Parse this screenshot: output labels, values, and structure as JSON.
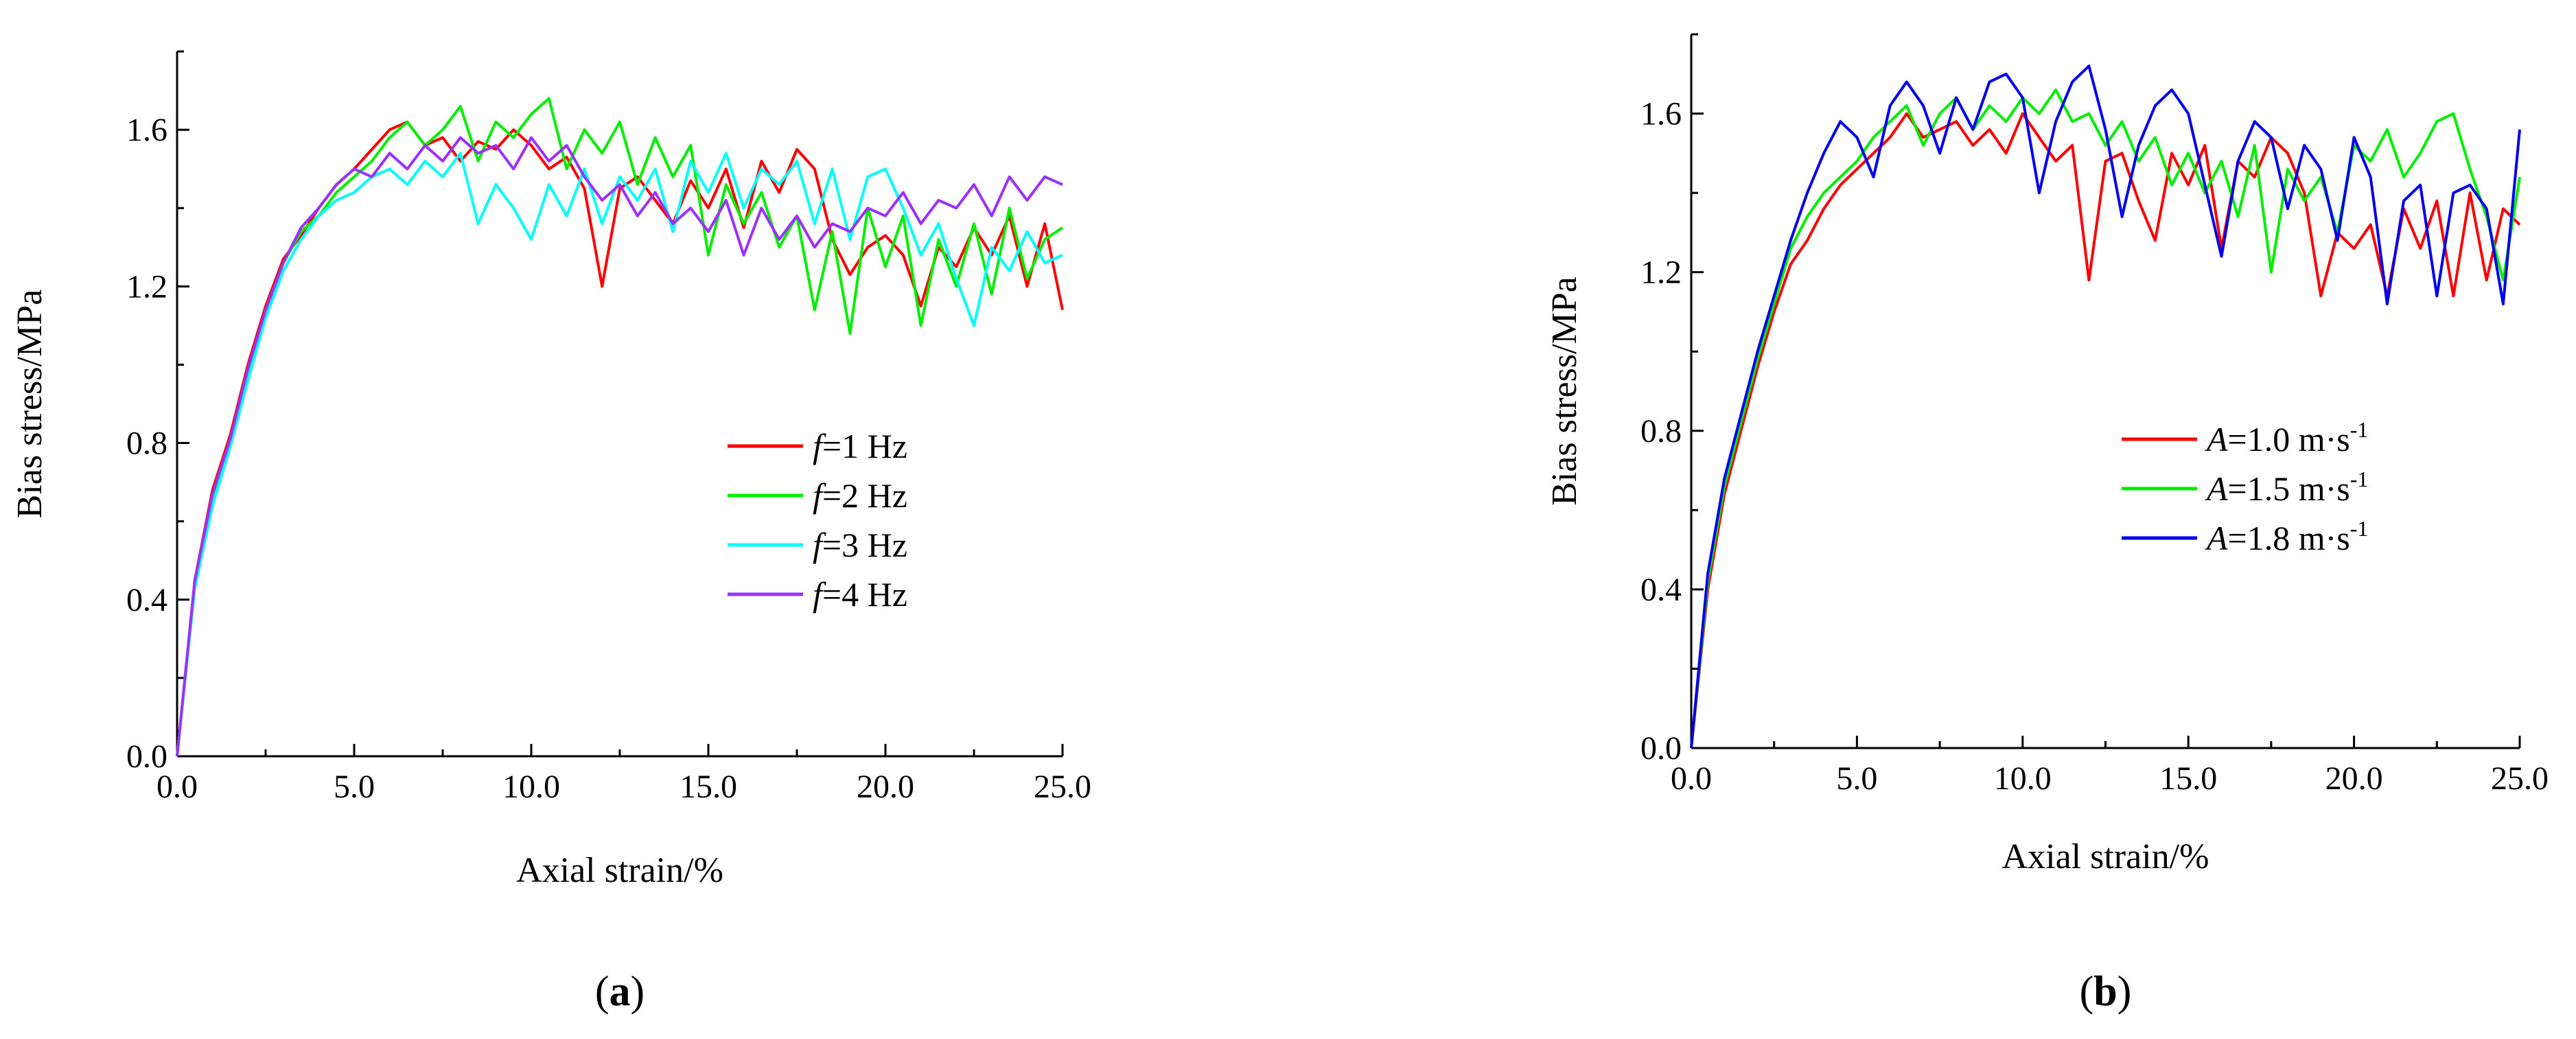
{
  "chart_data": [
    {
      "type": "line",
      "panel_label": "a",
      "xlabel": "Axial strain/%",
      "ylabel": "Bias stress/MPa",
      "xlim": [
        0,
        25
      ],
      "ylim": [
        0,
        1.8
      ],
      "xticks": [
        "0.0",
        "5.0",
        "10.0",
        "15.0",
        "20.0",
        "25.0"
      ],
      "yticks": [
        "0.0",
        "0.4",
        "0.8",
        "1.2",
        "1.6"
      ],
      "legend_position": "lower-right",
      "series": [
        {
          "name": "f=1 Hz",
          "legend_italic": "f",
          "legend_rest": "=1 Hz",
          "color": "#ff0000",
          "x": [
            0,
            0.5,
            1.0,
            1.5,
            2.0,
            2.5,
            3.0,
            3.5,
            4.0,
            4.5,
            5.0,
            5.5,
            6.0,
            6.5,
            7.0,
            7.5,
            8.0,
            8.5,
            9.0,
            9.5,
            10.0,
            10.5,
            11.0,
            11.5,
            12.0,
            12.5,
            13.0,
            13.5,
            14.0,
            14.5,
            15.0,
            15.5,
            16.0,
            16.5,
            17.0,
            17.5,
            18.0,
            18.5,
            19.0,
            19.5,
            20.0,
            20.5,
            21.0,
            21.5,
            22.0,
            22.5,
            23.0,
            23.5,
            24.0,
            24.5,
            25.0
          ],
          "y": [
            0,
            0.45,
            0.68,
            0.82,
            1.0,
            1.15,
            1.27,
            1.33,
            1.4,
            1.46,
            1.5,
            1.55,
            1.6,
            1.62,
            1.56,
            1.58,
            1.52,
            1.57,
            1.55,
            1.6,
            1.56,
            1.5,
            1.53,
            1.45,
            1.2,
            1.45,
            1.48,
            1.42,
            1.36,
            1.47,
            1.4,
            1.5,
            1.35,
            1.52,
            1.44,
            1.55,
            1.5,
            1.32,
            1.23,
            1.3,
            1.33,
            1.28,
            1.15,
            1.3,
            1.25,
            1.35,
            1.28,
            1.38,
            1.2,
            1.36,
            1.14
          ]
        },
        {
          "name": "f=2 Hz",
          "legend_italic": "f",
          "legend_rest": "=2 Hz",
          "color": "#00ee00",
          "x": [
            0,
            0.5,
            1.0,
            1.5,
            2.0,
            2.5,
            3.0,
            3.5,
            4.0,
            4.5,
            5.0,
            5.5,
            6.0,
            6.5,
            7.0,
            7.5,
            8.0,
            8.5,
            9.0,
            9.5,
            10.0,
            10.5,
            11.0,
            11.5,
            12.0,
            12.5,
            13.0,
            13.5,
            14.0,
            14.5,
            15.0,
            15.5,
            16.0,
            16.5,
            17.0,
            17.5,
            18.0,
            18.5,
            19.0,
            19.5,
            20.0,
            20.5,
            21.0,
            21.5,
            22.0,
            22.5,
            23.0,
            23.5,
            24.0,
            24.5,
            25.0
          ],
          "y": [
            0,
            0.44,
            0.66,
            0.8,
            0.98,
            1.14,
            1.26,
            1.34,
            1.38,
            1.44,
            1.48,
            1.52,
            1.58,
            1.62,
            1.56,
            1.6,
            1.66,
            1.52,
            1.62,
            1.58,
            1.64,
            1.68,
            1.5,
            1.6,
            1.54,
            1.62,
            1.46,
            1.58,
            1.48,
            1.56,
            1.28,
            1.46,
            1.36,
            1.44,
            1.3,
            1.38,
            1.14,
            1.34,
            1.08,
            1.4,
            1.25,
            1.38,
            1.1,
            1.32,
            1.2,
            1.36,
            1.18,
            1.4,
            1.22,
            1.32,
            1.35
          ]
        },
        {
          "name": "f=3 Hz",
          "legend_italic": "f",
          "legend_rest": "=3 Hz",
          "color": "#00ffff",
          "x": [
            0,
            0.5,
            1.0,
            1.5,
            2.0,
            2.5,
            3.0,
            3.5,
            4.0,
            4.5,
            5.0,
            5.5,
            6.0,
            6.5,
            7.0,
            7.5,
            8.0,
            8.5,
            9.0,
            9.5,
            10.0,
            10.5,
            11.0,
            11.5,
            12.0,
            12.5,
            13.0,
            13.5,
            14.0,
            14.5,
            15.0,
            15.5,
            16.0,
            16.5,
            17.0,
            17.5,
            18.0,
            18.5,
            19.0,
            19.5,
            20.0,
            20.5,
            21.0,
            21.5,
            22.0,
            22.5,
            23.0,
            23.5,
            24.0,
            24.5,
            25.0
          ],
          "y": [
            0,
            0.43,
            0.64,
            0.79,
            0.96,
            1.12,
            1.24,
            1.32,
            1.38,
            1.42,
            1.44,
            1.48,
            1.5,
            1.46,
            1.52,
            1.48,
            1.54,
            1.36,
            1.46,
            1.4,
            1.32,
            1.46,
            1.38,
            1.5,
            1.36,
            1.48,
            1.42,
            1.5,
            1.34,
            1.52,
            1.44,
            1.54,
            1.4,
            1.5,
            1.46,
            1.52,
            1.36,
            1.5,
            1.32,
            1.48,
            1.5,
            1.4,
            1.28,
            1.36,
            1.22,
            1.1,
            1.3,
            1.24,
            1.34,
            1.26,
            1.28
          ]
        },
        {
          "name": "f=4 Hz",
          "legend_italic": "f",
          "legend_rest": "=4 Hz",
          "color": "#9b30ff",
          "x": [
            0,
            0.5,
            1.0,
            1.5,
            2.0,
            2.5,
            3.0,
            3.5,
            4.0,
            4.5,
            5.0,
            5.5,
            6.0,
            6.5,
            7.0,
            7.5,
            8.0,
            8.5,
            9.0,
            9.5,
            10.0,
            10.5,
            11.0,
            11.5,
            12.0,
            12.5,
            13.0,
            13.5,
            14.0,
            14.5,
            15.0,
            15.5,
            16.0,
            16.5,
            17.0,
            17.5,
            18.0,
            18.5,
            19.0,
            19.5,
            20.0,
            20.5,
            21.0,
            21.5,
            22.0,
            22.5,
            23.0,
            23.5,
            24.0,
            24.5,
            25.0
          ],
          "y": [
            0,
            0.45,
            0.67,
            0.81,
            0.99,
            1.14,
            1.26,
            1.35,
            1.4,
            1.46,
            1.5,
            1.48,
            1.54,
            1.5,
            1.56,
            1.52,
            1.58,
            1.54,
            1.56,
            1.5,
            1.58,
            1.52,
            1.56,
            1.48,
            1.42,
            1.46,
            1.38,
            1.44,
            1.36,
            1.4,
            1.34,
            1.42,
            1.28,
            1.4,
            1.32,
            1.38,
            1.3,
            1.36,
            1.34,
            1.4,
            1.38,
            1.44,
            1.36,
            1.42,
            1.4,
            1.46,
            1.38,
            1.48,
            1.42,
            1.48,
            1.46
          ]
        }
      ]
    },
    {
      "type": "line",
      "panel_label": "b",
      "xlabel": "Axial strain/%",
      "ylabel": "Bias stress/MPa",
      "xlim": [
        0,
        25
      ],
      "ylim": [
        0,
        1.8
      ],
      "xticks": [
        "0.0",
        "5.0",
        "10.0",
        "15.0",
        "20.0",
        "25.0"
      ],
      "yticks": [
        "0.0",
        "0.4",
        "0.8",
        "1.2",
        "1.6"
      ],
      "legend_position": "center-right",
      "series": [
        {
          "name": "A=1.0 m·s-1",
          "legend_italic": "A",
          "legend_rest": "=1.0 m·s",
          "legend_sup": "-1",
          "color": "#ff0000",
          "x": [
            0,
            0.5,
            1.0,
            1.5,
            2.0,
            2.5,
            3.0,
            3.5,
            4.0,
            4.5,
            5.0,
            5.5,
            6.0,
            6.5,
            7.0,
            7.5,
            8.0,
            8.5,
            9.0,
            9.5,
            10.0,
            10.5,
            11.0,
            11.5,
            12.0,
            12.5,
            13.0,
            13.5,
            14.0,
            14.5,
            15.0,
            15.5,
            16.0,
            16.5,
            17.0,
            17.5,
            18.0,
            18.5,
            19.0,
            19.5,
            20.0,
            20.5,
            21.0,
            21.5,
            22.0,
            22.5,
            23.0,
            23.5,
            24.0,
            24.5,
            25.0
          ],
          "y": [
            0,
            0.4,
            0.64,
            0.8,
            0.96,
            1.1,
            1.22,
            1.28,
            1.36,
            1.42,
            1.46,
            1.5,
            1.54,
            1.6,
            1.54,
            1.56,
            1.58,
            1.52,
            1.56,
            1.5,
            1.6,
            1.54,
            1.48,
            1.52,
            1.18,
            1.48,
            1.5,
            1.38,
            1.28,
            1.5,
            1.42,
            1.52,
            1.26,
            1.48,
            1.44,
            1.54,
            1.5,
            1.4,
            1.14,
            1.3,
            1.26,
            1.32,
            1.14,
            1.36,
            1.26,
            1.38,
            1.14,
            1.4,
            1.18,
            1.36,
            1.32
          ]
        },
        {
          "name": "A=1.5 m·s-1",
          "legend_italic": "A",
          "legend_rest": "=1.5 m·s",
          "legend_sup": "-1",
          "color": "#00ee00",
          "x": [
            0,
            0.5,
            1.0,
            1.5,
            2.0,
            2.5,
            3.0,
            3.5,
            4.0,
            4.5,
            5.0,
            5.5,
            6.0,
            6.5,
            7.0,
            7.5,
            8.0,
            8.5,
            9.0,
            9.5,
            10.0,
            10.5,
            11.0,
            11.5,
            12.0,
            12.5,
            13.0,
            13.5,
            14.0,
            14.5,
            15.0,
            15.5,
            16.0,
            16.5,
            17.0,
            17.5,
            18.0,
            18.5,
            19.0,
            19.5,
            20.0,
            20.5,
            21.0,
            21.5,
            22.0,
            22.5,
            23.0,
            23.5,
            24.0,
            24.5,
            25.0
          ],
          "y": [
            0,
            0.42,
            0.66,
            0.82,
            0.98,
            1.12,
            1.26,
            1.34,
            1.4,
            1.44,
            1.48,
            1.54,
            1.58,
            1.62,
            1.52,
            1.6,
            1.64,
            1.56,
            1.62,
            1.58,
            1.64,
            1.6,
            1.66,
            1.58,
            1.6,
            1.52,
            1.58,
            1.48,
            1.54,
            1.42,
            1.5,
            1.4,
            1.48,
            1.34,
            1.52,
            1.2,
            1.46,
            1.38,
            1.44,
            1.3,
            1.52,
            1.48,
            1.56,
            1.44,
            1.5,
            1.58,
            1.6,
            1.46,
            1.34,
            1.18,
            1.44
          ]
        },
        {
          "name": "A=1.8 m·s-1",
          "legend_italic": "A",
          "legend_rest": "=1.8 m·s",
          "legend_sup": "-1",
          "color": "#0000ee",
          "x": [
            0,
            0.5,
            1.0,
            1.5,
            2.0,
            2.5,
            3.0,
            3.5,
            4.0,
            4.5,
            5.0,
            5.5,
            6.0,
            6.5,
            7.0,
            7.5,
            8.0,
            8.5,
            9.0,
            9.5,
            10.0,
            10.5,
            11.0,
            11.5,
            12.0,
            12.5,
            13.0,
            13.5,
            14.0,
            14.5,
            15.0,
            15.5,
            16.0,
            16.5,
            17.0,
            17.5,
            18.0,
            18.5,
            19.0,
            19.5,
            20.0,
            20.5,
            21.0,
            21.5,
            22.0,
            22.5,
            23.0,
            23.5,
            24.0,
            24.5,
            25.0
          ],
          "y": [
            0,
            0.44,
            0.68,
            0.84,
            1.0,
            1.14,
            1.28,
            1.4,
            1.5,
            1.58,
            1.54,
            1.44,
            1.62,
            1.68,
            1.62,
            1.5,
            1.64,
            1.56,
            1.68,
            1.7,
            1.64,
            1.4,
            1.58,
            1.68,
            1.72,
            1.56,
            1.34,
            1.52,
            1.62,
            1.66,
            1.6,
            1.42,
            1.24,
            1.48,
            1.58,
            1.54,
            1.36,
            1.52,
            1.46,
            1.28,
            1.54,
            1.44,
            1.12,
            1.38,
            1.42,
            1.14,
            1.4,
            1.42,
            1.36,
            1.12,
            1.56
          ]
        }
      ]
    }
  ]
}
